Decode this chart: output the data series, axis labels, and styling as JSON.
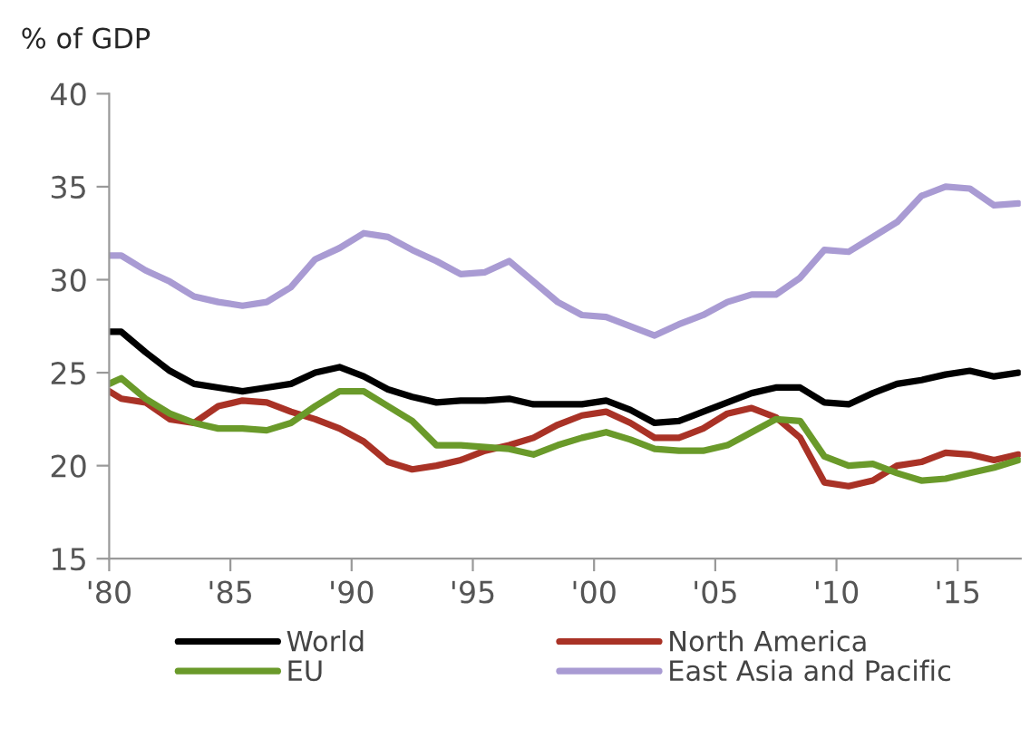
{
  "chart_data": {
    "type": "line",
    "ylabel": "% of GDP",
    "x": [
      1980,
      1980.5,
      1981.5,
      1982.5,
      1983.5,
      1984.5,
      1985.5,
      1986.5,
      1987.5,
      1988.5,
      1989.5,
      1990.5,
      1991.5,
      1992.5,
      1993.5,
      1994.5,
      1995.5,
      1996.5,
      1997.5,
      1998.5,
      1999.5,
      2000.5,
      2001.5,
      2002.5,
      2003.5,
      2004.5,
      2005.5,
      2006.5,
      2007.5,
      2008.5,
      2009.5,
      2010.5,
      2011.5,
      2012.5,
      2013.5,
      2014.5,
      2015.5,
      2016.5,
      2017.5
    ],
    "series": [
      {
        "name": "World",
        "color": "#000000",
        "values": [
          27.2,
          27.2,
          26.1,
          25.1,
          24.4,
          24.2,
          24.0,
          24.2,
          24.4,
          25.0,
          25.3,
          24.8,
          24.1,
          23.7,
          23.4,
          23.5,
          23.5,
          23.6,
          23.3,
          23.3,
          23.3,
          23.5,
          23.0,
          22.3,
          22.4,
          22.9,
          23.4,
          23.9,
          24.2,
          24.2,
          23.4,
          23.3,
          23.9,
          24.4,
          24.6,
          24.9,
          25.1,
          24.8,
          25.0
        ]
      },
      {
        "name": "North America",
        "color": "#a93226",
        "values": [
          24.0,
          23.6,
          23.4,
          22.5,
          22.3,
          23.2,
          23.5,
          23.4,
          22.9,
          22.5,
          22.0,
          21.3,
          20.2,
          19.8,
          20.0,
          20.3,
          20.8,
          21.1,
          21.5,
          22.2,
          22.7,
          22.9,
          22.3,
          21.5,
          21.5,
          22.0,
          22.8,
          23.1,
          22.6,
          21.5,
          19.1,
          18.9,
          19.2,
          20.0,
          20.2,
          20.7,
          20.6,
          20.3,
          20.6
        ]
      },
      {
        "name": "EU",
        "color": "#6a9a2a",
        "values": [
          24.4,
          24.7,
          23.6,
          22.8,
          22.3,
          22.0,
          22.0,
          21.9,
          22.3,
          23.2,
          24.0,
          24.0,
          23.2,
          22.4,
          21.1,
          21.1,
          21.0,
          20.9,
          20.6,
          21.1,
          21.5,
          21.8,
          21.4,
          20.9,
          20.8,
          20.8,
          21.1,
          21.8,
          22.5,
          22.4,
          20.5,
          20.0,
          20.1,
          19.6,
          19.2,
          19.3,
          19.6,
          19.9,
          20.3
        ]
      },
      {
        "name": "East Asia and Pacific",
        "color": "#a99bd3",
        "values": [
          31.3,
          31.3,
          30.5,
          29.9,
          29.1,
          28.8,
          28.6,
          28.8,
          29.6,
          31.1,
          31.7,
          32.5,
          32.3,
          31.6,
          31.0,
          30.3,
          30.4,
          31.0,
          29.9,
          28.8,
          28.1,
          28.0,
          27.5,
          27.0,
          27.6,
          28.1,
          28.8,
          29.2,
          29.2,
          30.1,
          31.6,
          31.5,
          32.3,
          33.1,
          34.5,
          35.0,
          34.9,
          34.0,
          34.1
        ]
      }
    ],
    "xlim": [
      1980,
      2017.6
    ],
    "xticks": [
      {
        "value": 1980,
        "label": "'80"
      },
      {
        "value": 1985,
        "label": "'85"
      },
      {
        "value": 1990,
        "label": "'90"
      },
      {
        "value": 1995,
        "label": "'95"
      },
      {
        "value": 2000,
        "label": "'00"
      },
      {
        "value": 2005,
        "label": "'05"
      },
      {
        "value": 2010,
        "label": "'10"
      },
      {
        "value": 2015,
        "label": "'15"
      }
    ],
    "ylim": [
      15,
      40
    ],
    "yticks": [
      15,
      20,
      25,
      30,
      35,
      40
    ],
    "grid": false,
    "legend": "bottom",
    "line_style": "solid",
    "marker": "none"
  }
}
